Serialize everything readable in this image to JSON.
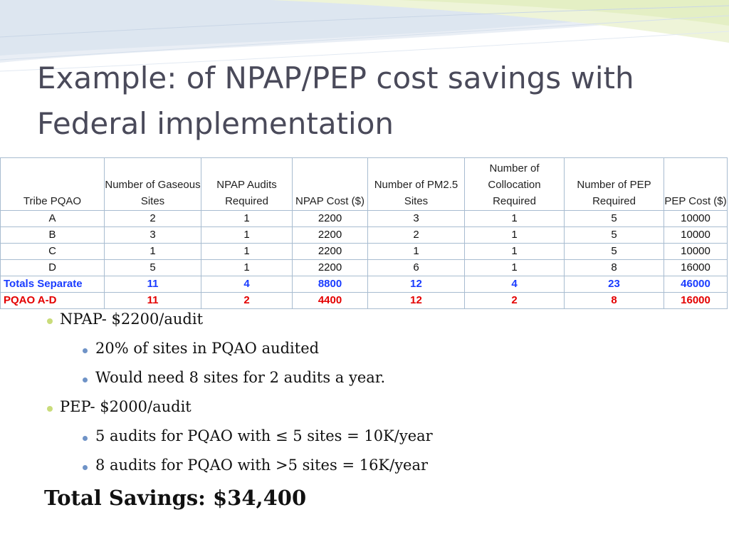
{
  "title": {
    "line1": "Example: of NPAP/PEP cost savings with",
    "line2": "Federal implementation"
  },
  "table": {
    "headers": [
      "Tribe PQAO",
      "Number of Gaseous Sites",
      "NPAP Audits Required",
      "NPAP Cost ($)",
      "Number of PM2.5 Sites",
      "Number of Collocation Required",
      "Number of PEP Required",
      "PEP Cost ($)"
    ],
    "rows": [
      [
        "A",
        "2",
        "1",
        "2200",
        "3",
        "1",
        "5",
        "10000"
      ],
      [
        "B",
        "3",
        "1",
        "2200",
        "2",
        "1",
        "5",
        "10000"
      ],
      [
        "C",
        "1",
        "1",
        "2200",
        "1",
        "1",
        "5",
        "10000"
      ],
      [
        "D",
        "5",
        "1",
        "2200",
        "6",
        "1",
        "8",
        "16000"
      ]
    ],
    "totals_separate": [
      "Totals Separate",
      "11",
      "4",
      "8800",
      "12",
      "4",
      "23",
      "46000"
    ],
    "pqao_ad": [
      "PQAO A-D",
      "11",
      "2",
      "4400",
      "12",
      "2",
      "8",
      "16000"
    ]
  },
  "bullets": {
    "npap": "NPAP- $2200/audit",
    "npap_sub1": "20% of sites in PQAO audited",
    "npap_sub2": "Would need 8 sites for 2 audits a year.",
    "pep": "PEP-  $2000/audit",
    "pep_sub1": "5 audits for PQAO with ≤ 5 sites = 10K/year",
    "pep_sub2": "8 audits for PQAO with >5 sites  = 16K/year"
  },
  "total_savings": "Total Savings:  $34,400",
  "colors": {
    "title": "#4a4a5a",
    "totals_separate": "#1a3cff",
    "pqao_ad": "#e40000",
    "bullet_level1": "#c9dc7a",
    "bullet_level2": "#6f93c7"
  }
}
